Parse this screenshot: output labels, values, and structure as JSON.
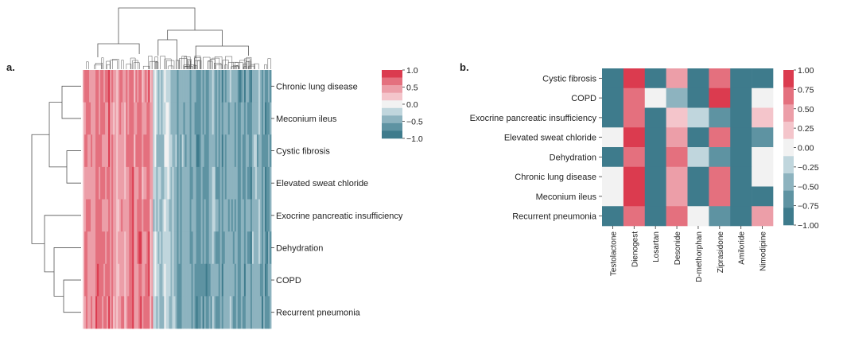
{
  "panel_a_label": "a.",
  "panel_b_label": "b.",
  "palette": [
    "#3e7b8c",
    "#5e93a2",
    "#8db3bf",
    "#c0d6dd",
    "#f2f2f2",
    "#f4c5cb",
    "#ec9ea8",
    "#e4707e",
    "#db3b4f"
  ],
  "chart_data": [
    {
      "type": "heatmap",
      "panel": "a",
      "clustered": true,
      "rows": [
        "Chronic lung disease",
        "Meconium ileus",
        "Cystic fibrosis",
        "Elevated sweat chloride",
        "Exocrine pancreatic insufficiency",
        "Dehydration",
        "COPD",
        "Recurrent pneumonia"
      ],
      "column_groups": [
        {
          "share": 0.37,
          "mean": 0.5,
          "spread": 0.25
        },
        {
          "share": 0.13,
          "mean": -0.3,
          "spread": 0.2
        },
        {
          "share": 0.5,
          "mean": -0.55,
          "spread": 0.2
        }
      ],
      "colorbar": {
        "ticks": [
          1.0,
          0.5,
          0.0,
          -0.5,
          -1.0
        ],
        "tick_labels": [
          "1.0",
          "0.5",
          "0.0",
          "−0.5",
          "−1.0"
        ],
        "vmin": -1,
        "vmax": 1
      }
    },
    {
      "type": "heatmap",
      "panel": "b",
      "rows": [
        "Cystic fibrosis",
        "COPD",
        "Exocrine pancreatic insufficiency",
        "Elevated sweat chloride",
        "Dehydration",
        "Chronic lung disease",
        "Meconium ileus",
        "Recurrent pneumonia"
      ],
      "columns": [
        "Testolactone",
        "Dienogest",
        "Losartan",
        "Desonide",
        "D-methorphan",
        "Ziprasidone",
        "Amiloride",
        "Nimodipine"
      ],
      "values": [
        [
          -1.0,
          1.0,
          -1.0,
          0.5,
          -1.0,
          0.75,
          -1.0,
          -1.0
        ],
        [
          -1.0,
          0.75,
          0.0,
          -0.5,
          -1.0,
          1.0,
          -1.0,
          0.0
        ],
        [
          -1.0,
          0.75,
          -1.0,
          0.25,
          -0.25,
          -0.75,
          -1.0,
          0.25
        ],
        [
          0.0,
          1.0,
          -1.0,
          0.5,
          -1.0,
          0.75,
          -1.0,
          -0.75
        ],
        [
          -1.0,
          0.75,
          -1.0,
          0.75,
          -0.25,
          -0.75,
          -1.0,
          0.0
        ],
        [
          0.0,
          1.0,
          -1.0,
          0.5,
          -1.0,
          0.75,
          -1.0,
          0.0
        ],
        [
          0.0,
          1.0,
          -1.0,
          0.5,
          -1.0,
          0.75,
          -1.0,
          -1.0
        ],
        [
          -1.0,
          0.75,
          -1.0,
          0.75,
          0.0,
          -0.75,
          -1.0,
          0.5
        ]
      ],
      "colorbar": {
        "ticks": [
          1.0,
          0.75,
          0.5,
          0.25,
          0.0,
          -0.25,
          -0.5,
          -0.75,
          -1.0
        ],
        "tick_labels": [
          "1.00",
          "0.75",
          "0.50",
          "0.25",
          "0.00",
          "−0.25",
          "−0.50",
          "−0.75",
          "−1.00"
        ],
        "vmin": -1,
        "vmax": 1
      }
    }
  ]
}
